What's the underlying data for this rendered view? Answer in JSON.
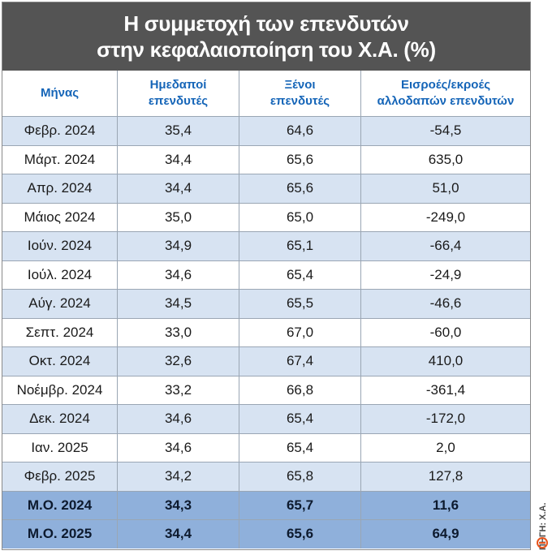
{
  "title": {
    "line1": "Η συμμετοχή των επενδυτών",
    "line2": "στην κεφαλαιοποίηση του Χ.Α. (%)"
  },
  "headers": {
    "month": "Μήνας",
    "domestic_line1": "Ημεδαποί",
    "domestic_line2": "επενδυτές",
    "foreign_line1": "Ξένοι",
    "foreign_line2": "επενδυτές",
    "flows_line1": "Εισροές/εκροές",
    "flows_line2": "αλλοδαπών επενδυτών"
  },
  "rows": [
    {
      "month": "Φεβρ. 2024",
      "domestic": "35,4",
      "foreign": "64,6",
      "flows": "-54,5"
    },
    {
      "month": "Μάρτ. 2024",
      "domestic": "34,4",
      "foreign": "65,6",
      "flows": "635,0"
    },
    {
      "month": "Απρ. 2024",
      "domestic": "34,4",
      "foreign": "65,6",
      "flows": "51,0"
    },
    {
      "month": "Μάιος 2024",
      "domestic": "35,0",
      "foreign": "65,0",
      "flows": "-249,0"
    },
    {
      "month": "Ιούν. 2024",
      "domestic": "34,9",
      "foreign": "65,1",
      "flows": "-66,4"
    },
    {
      "month": "Ιούλ. 2024",
      "domestic": "34,6",
      "foreign": "65,4",
      "flows": "-24,9"
    },
    {
      "month": "Αύγ. 2024",
      "domestic": "34,5",
      "foreign": "65,5",
      "flows": "-46,6"
    },
    {
      "month": "Σεπτ. 2024",
      "domestic": "33,0",
      "foreign": "67,0",
      "flows": "-60,0"
    },
    {
      "month": "Οκτ. 2024",
      "domestic": "32,6",
      "foreign": "67,4",
      "flows": "410,0"
    },
    {
      "month": "Νοέμβρ. 2024",
      "domestic": "33,2",
      "foreign": "66,8",
      "flows": "-361,4"
    },
    {
      "month": "Δεκ. 2024",
      "domestic": "34,6",
      "foreign": "65,4",
      "flows": "-172,0"
    },
    {
      "month": "Ιαν. 2025",
      "domestic": "34,6",
      "foreign": "65,4",
      "flows": "2,0"
    },
    {
      "month": "Φεβρ. 2025",
      "domestic": "34,2",
      "foreign": "65,8",
      "flows": "127,8"
    }
  ],
  "averages": [
    {
      "month": "Μ.Ο. 2024",
      "domestic": "34,3",
      "foreign": "65,7",
      "flows": "11,6"
    },
    {
      "month": "Μ.Ο. 2025",
      "domestic": "34,4",
      "foreign": "65,6",
      "flows": "64,9"
    }
  ],
  "source": {
    "text": "ΠΗΓΗ: Χ.Α.",
    "icon": "publisher-logo-icon"
  },
  "colors": {
    "title_bg": "#545454",
    "header_text": "#1565b8",
    "row_tint": "#d7e3f2",
    "avg_bg": "#8fb0db",
    "logo": "#e8541c"
  }
}
